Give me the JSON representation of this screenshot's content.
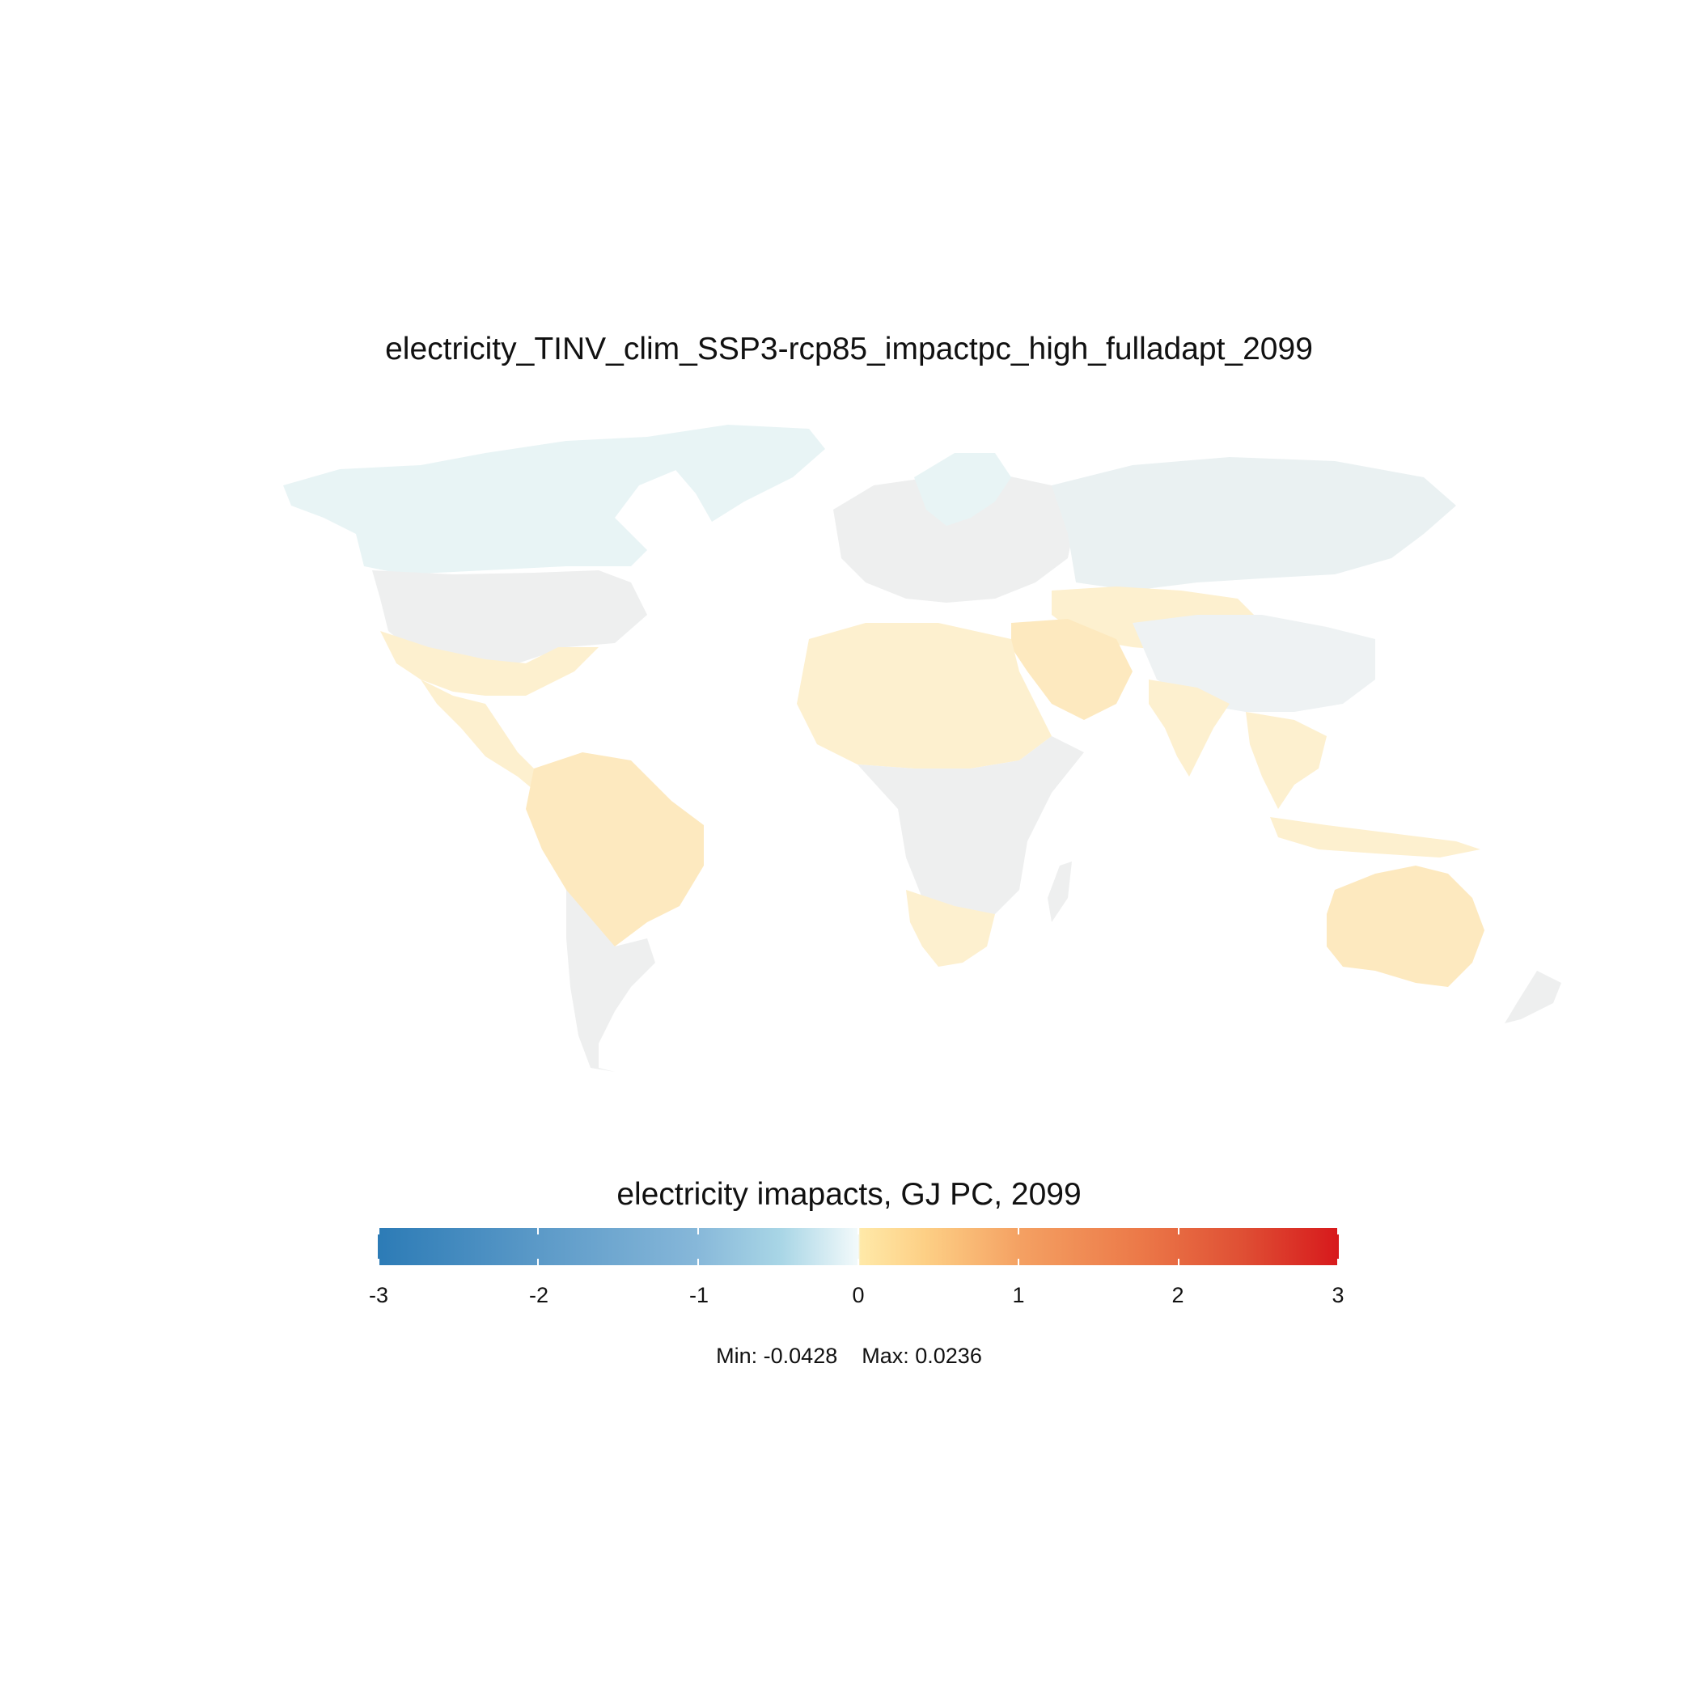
{
  "title": "electricity_TINV_clim_SSP3-rcp85_impactpc_high_fulladapt_2099",
  "legend": {
    "title": "electricity imapacts, GJ PC, 2099",
    "ticks": [
      "-3",
      "-2",
      "-1",
      "0",
      "1",
      "2",
      "3"
    ],
    "range": [
      -3,
      3
    ],
    "palette": [
      "#2c7bb6",
      "#abd9e9",
      "#ffffbf",
      "#fdae61",
      "#d7191c"
    ]
  },
  "stats": {
    "min_label": "Min: -0.0428",
    "max_label": "Max: 0.0236"
  },
  "map_colors": {
    "neutral": "#efefef",
    "cool": "#e8f4f5",
    "warm": "#fdf0cf",
    "warmer": "#fde9bf"
  }
}
